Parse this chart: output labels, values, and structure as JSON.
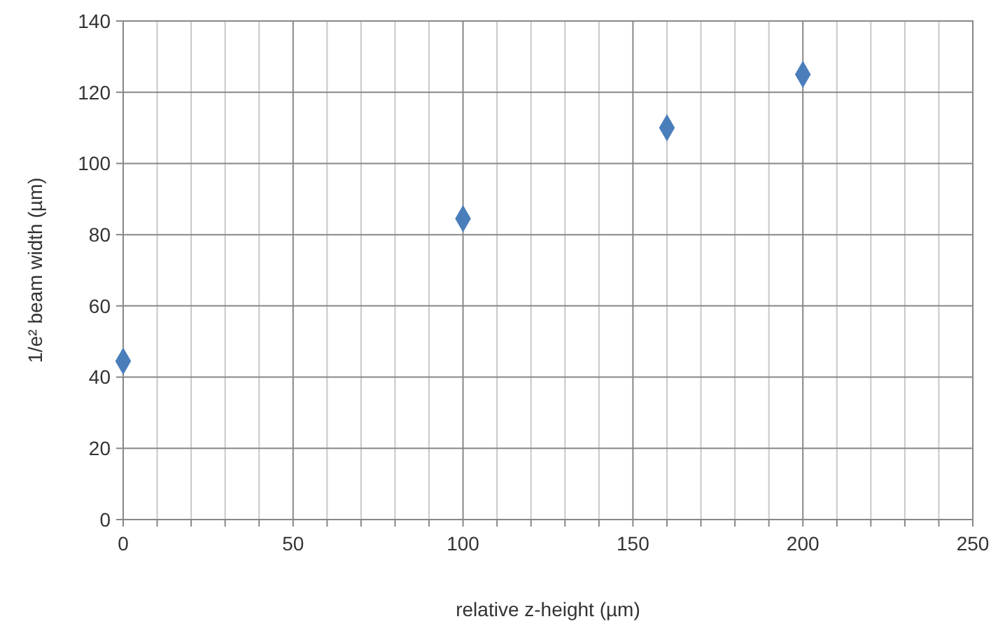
{
  "chart_data": {
    "type": "scatter",
    "xlabel": "relative z-height (µm)",
    "ylabel": "1/e² beam width (µm)",
    "x": [
      0,
      100,
      160,
      200
    ],
    "series": [
      {
        "color": "#4a7ebb",
        "values": [
          44.5,
          84.5,
          110,
          125
        ]
      }
    ],
    "xlim": [
      0,
      250
    ],
    "xticks": [
      0,
      {
        "value": 10,
        "label": null
      },
      {
        "value": 20,
        "label": null
      },
      {
        "value": 30,
        "label": null
      },
      {
        "value": 40,
        "label": null
      },
      50,
      {
        "value": 60,
        "label": null
      },
      {
        "value": 70,
        "label": null
      },
      {
        "value": 80,
        "label": null
      },
      {
        "value": 90,
        "label": null
      },
      100,
      {
        "value": 110,
        "label": null
      },
      {
        "value": 120,
        "label": null
      },
      {
        "value": 130,
        "label": null
      },
      {
        "value": 140,
        "label": null
      },
      150,
      {
        "value": 160,
        "label": null
      },
      {
        "value": 170,
        "label": null
      },
      {
        "value": 180,
        "label": null
      },
      {
        "value": 190,
        "label": null
      },
      200,
      {
        "value": 210,
        "label": null
      },
      {
        "value": 220,
        "label": null
      },
      {
        "value": 230,
        "label": null
      },
      {
        "value": 240,
        "label": null
      },
      250
    ],
    "ylim": [
      0,
      140
    ],
    "yticks": [
      0,
      20,
      40,
      60,
      80,
      100,
      120,
      140
    ],
    "grid": true,
    "marker": "diamond"
  }
}
